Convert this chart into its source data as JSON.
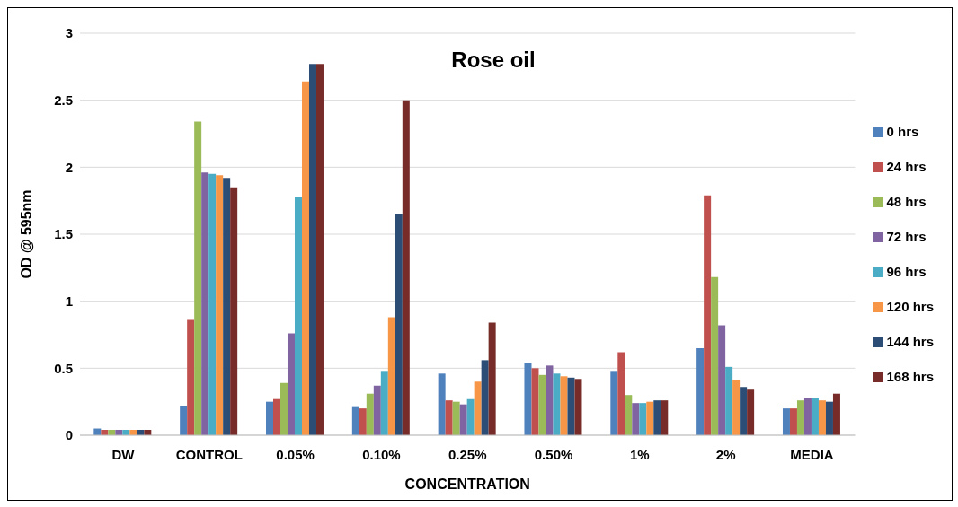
{
  "chart_data": {
    "type": "bar",
    "title": "Rose oil",
    "xlabel": "CONCENTRATION",
    "ylabel": "OD @ 595nm",
    "categories": [
      "DW",
      "CONTROL",
      "0.05%",
      "0.10%",
      "0.25%",
      "0.50%",
      "1%",
      "2%",
      "MEDIA"
    ],
    "series": [
      {
        "name": "0 hrs",
        "color": "#4f81bd",
        "values": [
          0.05,
          0.22,
          0.25,
          0.21,
          0.46,
          0.54,
          0.48,
          0.65,
          0.2
        ]
      },
      {
        "name": "24 hrs",
        "color": "#c0504d",
        "values": [
          0.04,
          0.86,
          0.27,
          0.2,
          0.26,
          0.5,
          0.62,
          1.79,
          0.2
        ]
      },
      {
        "name": "48 hrs",
        "color": "#9bbb59",
        "values": [
          0.04,
          2.34,
          0.39,
          0.31,
          0.25,
          0.45,
          0.3,
          1.18,
          0.26
        ]
      },
      {
        "name": "72 hrs",
        "color": "#8064a2",
        "values": [
          0.04,
          1.96,
          0.76,
          0.37,
          0.23,
          0.52,
          0.24,
          0.82,
          0.28
        ]
      },
      {
        "name": "96 hrs",
        "color": "#4bacc6",
        "values": [
          0.04,
          1.95,
          1.78,
          0.48,
          0.27,
          0.46,
          0.24,
          0.51,
          0.28
        ]
      },
      {
        "name": "120 hrs",
        "color": "#f79646",
        "values": [
          0.04,
          1.94,
          2.64,
          0.88,
          0.4,
          0.44,
          0.25,
          0.41,
          0.26
        ]
      },
      {
        "name": "144 hrs",
        "color": "#2c4d75",
        "values": [
          0.04,
          1.92,
          2.77,
          1.65,
          0.56,
          0.43,
          0.26,
          0.36,
          0.25
        ]
      },
      {
        "name": "168 hrs",
        "color": "#772c2a",
        "values": [
          0.04,
          1.85,
          2.77,
          2.5,
          0.84,
          0.42,
          0.26,
          0.34,
          0.31
        ]
      }
    ],
    "ylim": [
      0,
      3
    ],
    "yticks": [
      0,
      0.5,
      1,
      1.5,
      2,
      2.5,
      3
    ],
    "grid": "y",
    "legend": "right"
  }
}
